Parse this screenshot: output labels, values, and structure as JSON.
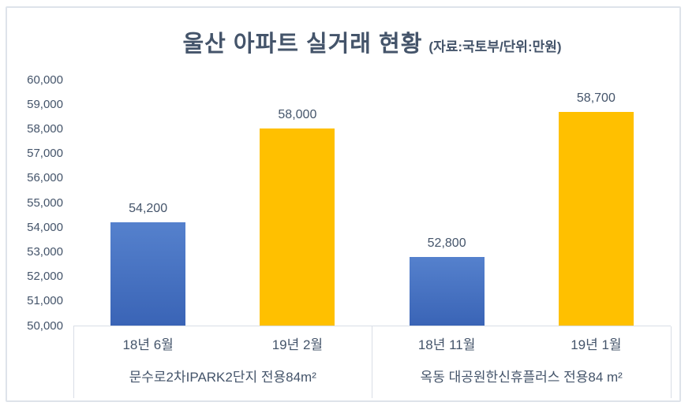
{
  "chart_data": {
    "type": "bar",
    "title": "울산 아파트 실거래 현황",
    "subtitle": "(자료:국토부/단위:만원)",
    "ylabel": "",
    "xlabel": "",
    "ylim": [
      50000,
      60000
    ],
    "ytick_step": 1000,
    "ytick_labels": [
      "60,000",
      "59,000",
      "58,000",
      "57,000",
      "56,000",
      "55,000",
      "54,000",
      "53,000",
      "52,000",
      "51,000",
      "50,000"
    ],
    "grid": false,
    "legend": "none",
    "categories": [
      "18년 6월",
      "19년 2월",
      "18년 11월",
      "19년 1월"
    ],
    "values": [
      54200,
      58000,
      52800,
      58700
    ],
    "groups": [
      {
        "label": "문수로2차IPARK2단지 전용84m²",
        "bars": [
          {
            "category": "18년 6월",
            "value": 54200,
            "value_label": "54,200",
            "color": "blue"
          },
          {
            "category": "19년 2월",
            "value": 58000,
            "value_label": "58,000",
            "color": "gold"
          }
        ]
      },
      {
        "label": "옥동 대공원한신휴플러스 전용84 m²",
        "bars": [
          {
            "category": "18년 11월",
            "value": 52800,
            "value_label": "52,800",
            "color": "blue"
          },
          {
            "category": "19년 1월",
            "value": 58700,
            "value_label": "58,700",
            "color": "gold"
          }
        ]
      }
    ],
    "colors": {
      "bar_blue_top": "#5581cd",
      "bar_blue_bottom": "#3a64b6",
      "bar_gold": "#ffc000",
      "text": "#44546a",
      "line": "#d9dee6"
    }
  }
}
